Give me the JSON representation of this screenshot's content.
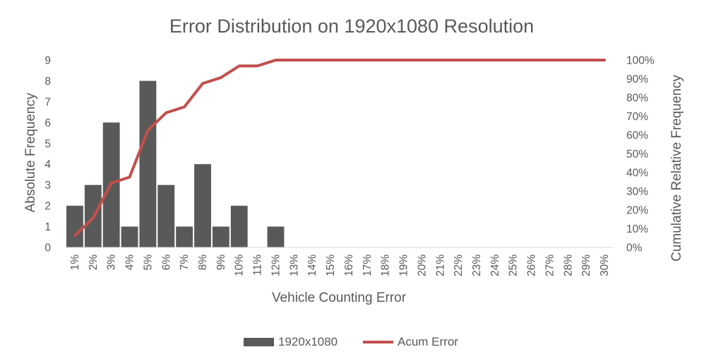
{
  "chart_data": {
    "type": "bar",
    "title": "Error Distribution on 1920x1080 Resolution",
    "xlabel": "Vehicle Counting Error",
    "ylabel": "Absolute Frequency",
    "y2label": "Cumulative Relative Frequency",
    "ylim": [
      0,
      9
    ],
    "y2lim": [
      0,
      1
    ],
    "yticks": [
      "0",
      "1",
      "2",
      "3",
      "4",
      "5",
      "6",
      "7",
      "8",
      "9"
    ],
    "y2ticks": [
      "0%",
      "10%",
      "20%",
      "30%",
      "40%",
      "50%",
      "60%",
      "70%",
      "80%",
      "90%",
      "100%"
    ],
    "categories": [
      "1%",
      "2%",
      "3%",
      "4%",
      "5%",
      "6%",
      "7%",
      "8%",
      "9%",
      "10%",
      "11%",
      "12%",
      "13%",
      "14%",
      "15%",
      "16%",
      "17%",
      "18%",
      "19%",
      "20%",
      "21%",
      "22%",
      "23%",
      "24%",
      "25%",
      "26%",
      "27%",
      "28%",
      "29%",
      "30%"
    ],
    "series": [
      {
        "name": "1920x1080",
        "type": "bar",
        "axis": "left",
        "color": "#595959",
        "values": [
          2,
          3,
          6,
          1,
          8,
          3,
          1,
          4,
          1,
          2,
          0,
          1,
          0,
          0,
          0,
          0,
          0,
          0,
          0,
          0,
          0,
          0,
          0,
          0,
          0,
          0,
          0,
          0,
          0,
          0
        ]
      },
      {
        "name": "Acum Error",
        "type": "line",
        "axis": "right",
        "color": "#C0504D",
        "values": [
          0.0625,
          0.15625,
          0.34375,
          0.375,
          0.625,
          0.71875,
          0.75,
          0.875,
          0.90625,
          0.96875,
          0.96875,
          1,
          1,
          1,
          1,
          1,
          1,
          1,
          1,
          1,
          1,
          1,
          1,
          1,
          1,
          1,
          1,
          1,
          1,
          1
        ]
      }
    ],
    "grid": false,
    "legend_position": "bottom"
  }
}
